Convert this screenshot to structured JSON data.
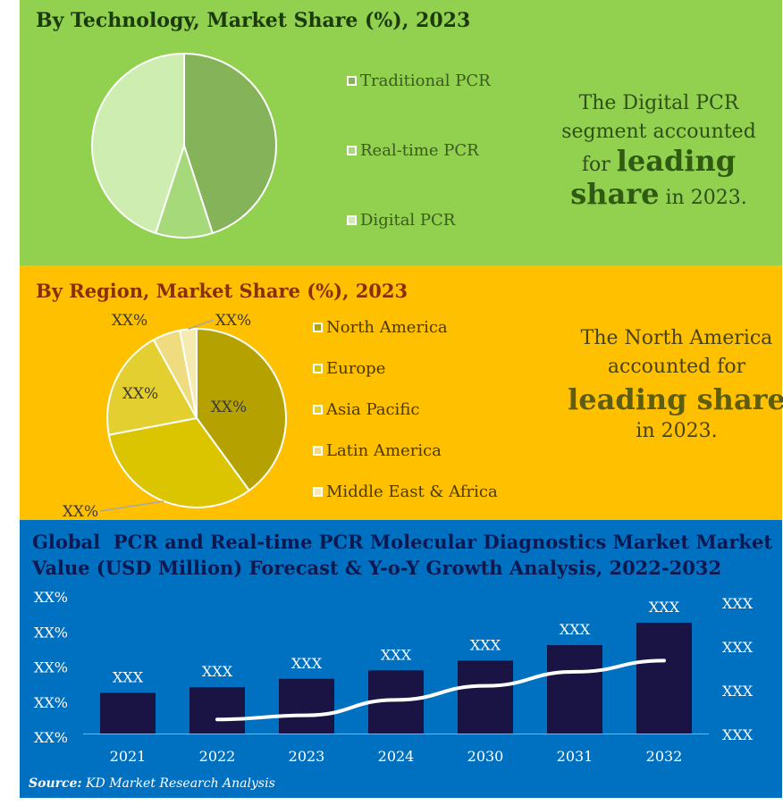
{
  "technology": {
    "title": "By Technology, Market Share (%), 2023",
    "callout": {
      "line1": "The Digital PCR",
      "line2": "segment accounted",
      "line3a": "for ",
      "line3b": "leading",
      "line4a": "share",
      "line4b": " in 2023."
    }
  },
  "region": {
    "title": "By Region, Market Share (%), 2023",
    "callout": {
      "line1": "The North America",
      "line2": "accounted for",
      "line3": "leading share",
      "line4": "in 2023."
    }
  },
  "forecast": {
    "title_line1": "Global  PCR and Real-time PCR Molecular Diagnostics Market Market",
    "title_line2": "Value (USD Million) Forecast & Y-o-Y Growth Analysis, 2022-2032"
  },
  "source": {
    "label": "Source:",
    "text": " KD Market Research Analysis"
  },
  "colors": {
    "green_panel": "#92d050",
    "orange_panel": "#ffc000",
    "blue_panel": "#0070c0",
    "bar": "#1a1445",
    "growth_line": "#ffffff"
  },
  "chart_data": [
    {
      "type": "pie",
      "title": "By Technology, Market Share (%), 2023",
      "labels": [
        "Traditional PCR",
        "Real-time PCR",
        "Digital PCR"
      ],
      "values": [
        45,
        10,
        45
      ],
      "colors": [
        "#84b35a",
        "#a6d97a",
        "#cdeeb0"
      ],
      "legend_position": "right"
    },
    {
      "type": "pie",
      "title": "By Region, Market Share (%), 2023",
      "labels": [
        "North America",
        "Europe",
        "Asia Pacific",
        "Latin America",
        "Middle East & Africa"
      ],
      "values": [
        40,
        32,
        20,
        5,
        3
      ],
      "colors": [
        "#b5a100",
        "#dbc400",
        "#e3cf30",
        "#f0dc80",
        "#f5ebb0"
      ],
      "data_labels": [
        "XX%",
        "XX%",
        "XX%",
        "XX%",
        "XX%"
      ],
      "legend_position": "right"
    },
    {
      "type": "bar",
      "title": "Global  PCR and Real-time PCR Molecular Diagnostics Market Market Value (USD Million) Forecast & Y-o-Y Growth Analysis, 2022-2032",
      "categories": [
        "2021",
        "2022",
        "2023",
        "2024",
        "2030",
        "2031",
        "2032"
      ],
      "series": [
        {
          "values": [
            29,
            33,
            39,
            45,
            52,
            63,
            79
          ],
          "data_labels": [
            "XXX",
            "XXX",
            "XXX",
            "XXX",
            "XXX",
            "XXX",
            "XXX"
          ]
        },
        {
          "type": "line",
          "values": [
            null,
            10,
            13,
            24,
            34,
            44,
            52
          ]
        }
      ],
      "ylim": [
        0,
        100
      ],
      "growth_ylim": [
        0,
        100
      ],
      "left_axis_ticks": [
        "XX%",
        "XX%",
        "XX%",
        "XX%",
        "XX%"
      ],
      "right_axis_ticks": [
        "XXX",
        "XXX",
        "XXX",
        "XXX"
      ],
      "grid": false
    }
  ]
}
